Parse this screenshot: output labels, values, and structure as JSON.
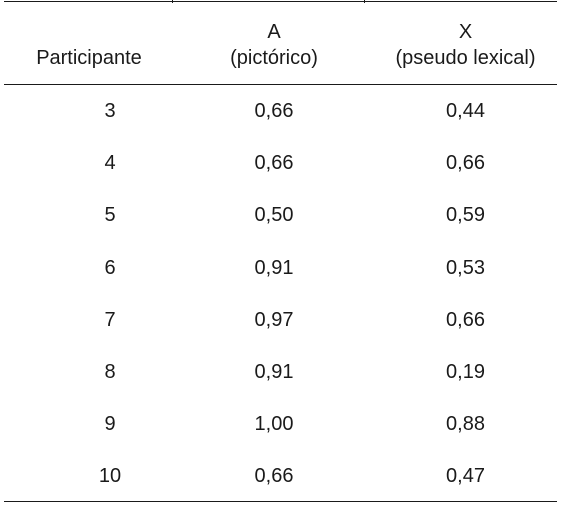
{
  "table": {
    "headers": {
      "participant": "Participante",
      "a_line1": "A",
      "a_line2": "(pictórico)",
      "x_line1": "X",
      "x_line2": "(pseudo lexical)"
    },
    "rows": [
      {
        "participant": "3",
        "a": "0,66",
        "x": "0,44"
      },
      {
        "participant": "4",
        "a": "0,66",
        "x": "0,66"
      },
      {
        "participant": "5",
        "a": "0,50",
        "x": "0,59"
      },
      {
        "participant": "6",
        "a": "0,91",
        "x": "0,53"
      },
      {
        "participant": "7",
        "a": "0,97",
        "x": "0,66"
      },
      {
        "participant": "8",
        "a": "0,91",
        "x": "0,19"
      },
      {
        "participant": "9",
        "a": "1,00",
        "x": "0,88"
      },
      {
        "participant": "10",
        "a": "0,66",
        "x": "0,47"
      }
    ]
  }
}
